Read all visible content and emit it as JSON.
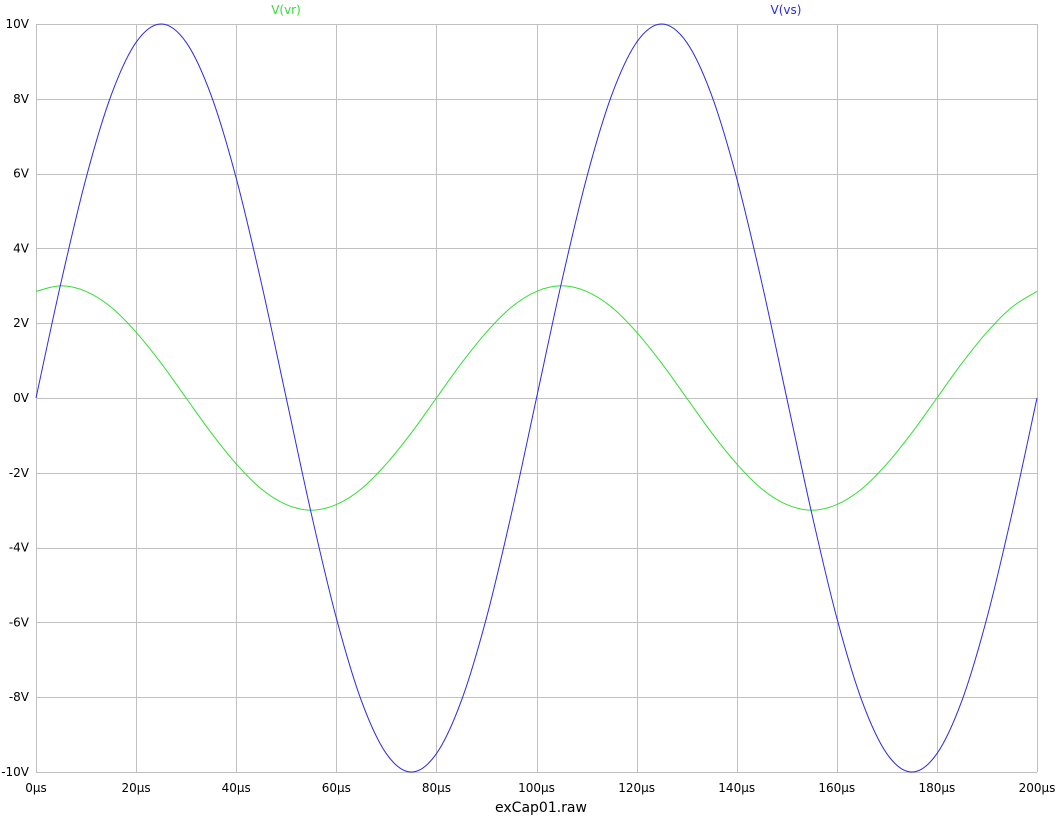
{
  "chart_data": {
    "type": "line",
    "title": "",
    "file_label": "exCap01.raw",
    "xlabel": "",
    "ylabel": "",
    "xlim": [
      0,
      200
    ],
    "ylim": [
      -10,
      10
    ],
    "x_unit": "µs",
    "y_unit": "V",
    "x_ticks": [
      0,
      20,
      40,
      60,
      80,
      100,
      120,
      140,
      160,
      180,
      200
    ],
    "y_ticks": [
      -10,
      -8,
      -6,
      -4,
      -2,
      0,
      2,
      4,
      6,
      8,
      10
    ],
    "x_tick_labels": [
      "0µs",
      "20µs",
      "40µs",
      "60µs",
      "80µs",
      "100µs",
      "120µs",
      "140µs",
      "160µs",
      "180µs",
      "200µs"
    ],
    "y_tick_labels": [
      "-10V",
      "-8V",
      "-6V",
      "-4V",
      "-2V",
      "0V",
      "2V",
      "4V",
      "6V",
      "8V",
      "10V"
    ],
    "grid": true,
    "legend_placement": "top",
    "series": [
      {
        "name": "V(vr)",
        "color": "#33dd33",
        "x": [
          0,
          5,
          10,
          15,
          20,
          25,
          30,
          35,
          40,
          45,
          50,
          55,
          60,
          65,
          70,
          75,
          80,
          85,
          90,
          95,
          100,
          105,
          110,
          115,
          120,
          125,
          130,
          135,
          140,
          145,
          150,
          155,
          160,
          165,
          170,
          175,
          180,
          185,
          190,
          195,
          200
        ],
        "y": [
          2.85,
          3.0,
          2.85,
          2.43,
          1.76,
          0.93,
          0.0,
          -0.93,
          -1.76,
          -2.43,
          -2.85,
          -3.0,
          -2.85,
          -2.43,
          -1.76,
          -0.93,
          0.0,
          0.93,
          1.76,
          2.43,
          2.85,
          3.0,
          2.85,
          2.43,
          1.76,
          0.93,
          0.0,
          -0.93,
          -1.76,
          -2.43,
          -2.85,
          -3.0,
          -2.85,
          -2.43,
          -1.76,
          -0.93,
          0.0,
          0.93,
          1.76,
          2.43,
          2.85
        ]
      },
      {
        "name": "V(vs)",
        "color": "#2a2ae6",
        "x": [
          0,
          5,
          10,
          15,
          20,
          25,
          30,
          35,
          40,
          45,
          50,
          55,
          60,
          65,
          70,
          75,
          80,
          85,
          90,
          95,
          100,
          105,
          110,
          115,
          120,
          125,
          130,
          135,
          140,
          145,
          150,
          155,
          160,
          165,
          170,
          175,
          180,
          185,
          190,
          195,
          200
        ],
        "y": [
          0.0,
          3.09,
          5.88,
          8.09,
          9.51,
          10.0,
          9.51,
          8.09,
          5.88,
          3.09,
          0.0,
          -3.09,
          -5.88,
          -8.09,
          -9.51,
          -10.0,
          -9.51,
          -8.09,
          -5.88,
          -3.09,
          0.0,
          3.09,
          5.88,
          8.09,
          9.51,
          10.0,
          9.51,
          8.09,
          5.88,
          3.09,
          0.0,
          -3.09,
          -5.88,
          -8.09,
          -9.51,
          -10.0,
          -9.51,
          -8.09,
          -5.88,
          -3.09,
          0.0
        ]
      }
    ]
  }
}
